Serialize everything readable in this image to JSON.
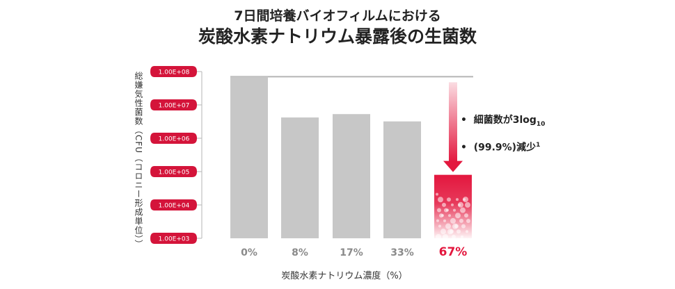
{
  "title": {
    "line1": "7日間培養バイオフィルムにおける",
    "line2": "炭酸水素ナトリウム暴露後の生菌数"
  },
  "chart_data": {
    "type": "bar",
    "title": "7日間培養バイオフィルムにおける炭酸水素ナトリウム暴露後の生菌数",
    "xlabel": "炭酸水素ナトリウム濃度（%）",
    "ylabel": "総嫌気性菌数（CFU（コロニー形成単位））",
    "yscale": "log",
    "ylim": [
      1000,
      100000000
    ],
    "yticks": [
      "1.00E+08",
      "1.00E+07",
      "1.00E+06",
      "1.00E+05",
      "1.00E+04",
      "1.00E+03"
    ],
    "ytick_values": [
      100000000,
      10000000,
      1000000,
      100000,
      10000,
      1000
    ],
    "categories": [
      "0%",
      "8%",
      "17%",
      "33%",
      "67%"
    ],
    "values": [
      70000000,
      4200000,
      5300000,
      3200000,
      80000
    ],
    "highlight_index": 4,
    "baseline_value": 70000000,
    "annotations": [
      "細菌数が3log",
      "10",
      "(99.9%)減少",
      "1"
    ]
  },
  "colors": {
    "bar": "#c7c7c7",
    "highlight": "#e3173e",
    "tick_pill": "#d4143a",
    "axis": "#b5b5b5",
    "text": "#222222",
    "category_text": "#8a8a8a"
  }
}
